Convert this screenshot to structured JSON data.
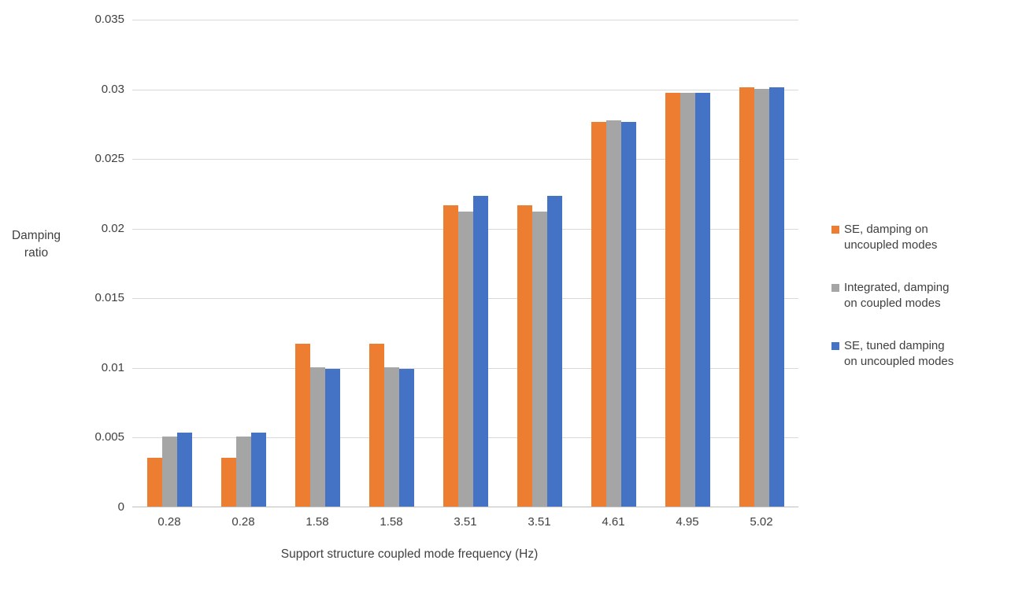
{
  "chart_data": {
    "type": "bar",
    "categories": [
      "0.28",
      "0.28",
      "1.58",
      "1.58",
      "3.51",
      "3.51",
      "4.61",
      "4.95",
      "5.02"
    ],
    "series": [
      {
        "name": "SE, damping on uncoupled modes",
        "color": "#ED7D31",
        "values": [
          0.0035,
          0.0035,
          0.0117,
          0.0117,
          0.0216,
          0.0216,
          0.0276,
          0.0297,
          0.0301
        ]
      },
      {
        "name": "Integrated, damping on coupled modes",
        "color": "#A5A5A5",
        "values": [
          0.005,
          0.005,
          0.01,
          0.01,
          0.0212,
          0.0212,
          0.0277,
          0.0297,
          0.03
        ]
      },
      {
        "name": "SE, tuned damping on uncoupled modes",
        "color": "#4472C4",
        "values": [
          0.0053,
          0.0053,
          0.0099,
          0.0099,
          0.0223,
          0.0223,
          0.0276,
          0.0297,
          0.0301
        ]
      }
    ],
    "xlabel": "Support structure coupled mode frequency (Hz)",
    "ylabel": "Damping ratio",
    "ylim": [
      0,
      0.035
    ],
    "yticks": [
      "0",
      "0.005",
      "0.01",
      "0.015",
      "0.02",
      "0.025",
      "0.03",
      "0.035"
    ],
    "grid": true,
    "legend_position": "right",
    "grid_color": "#D9D9D9",
    "axis_color": "#BFBFBF",
    "text_color": "#404040"
  }
}
